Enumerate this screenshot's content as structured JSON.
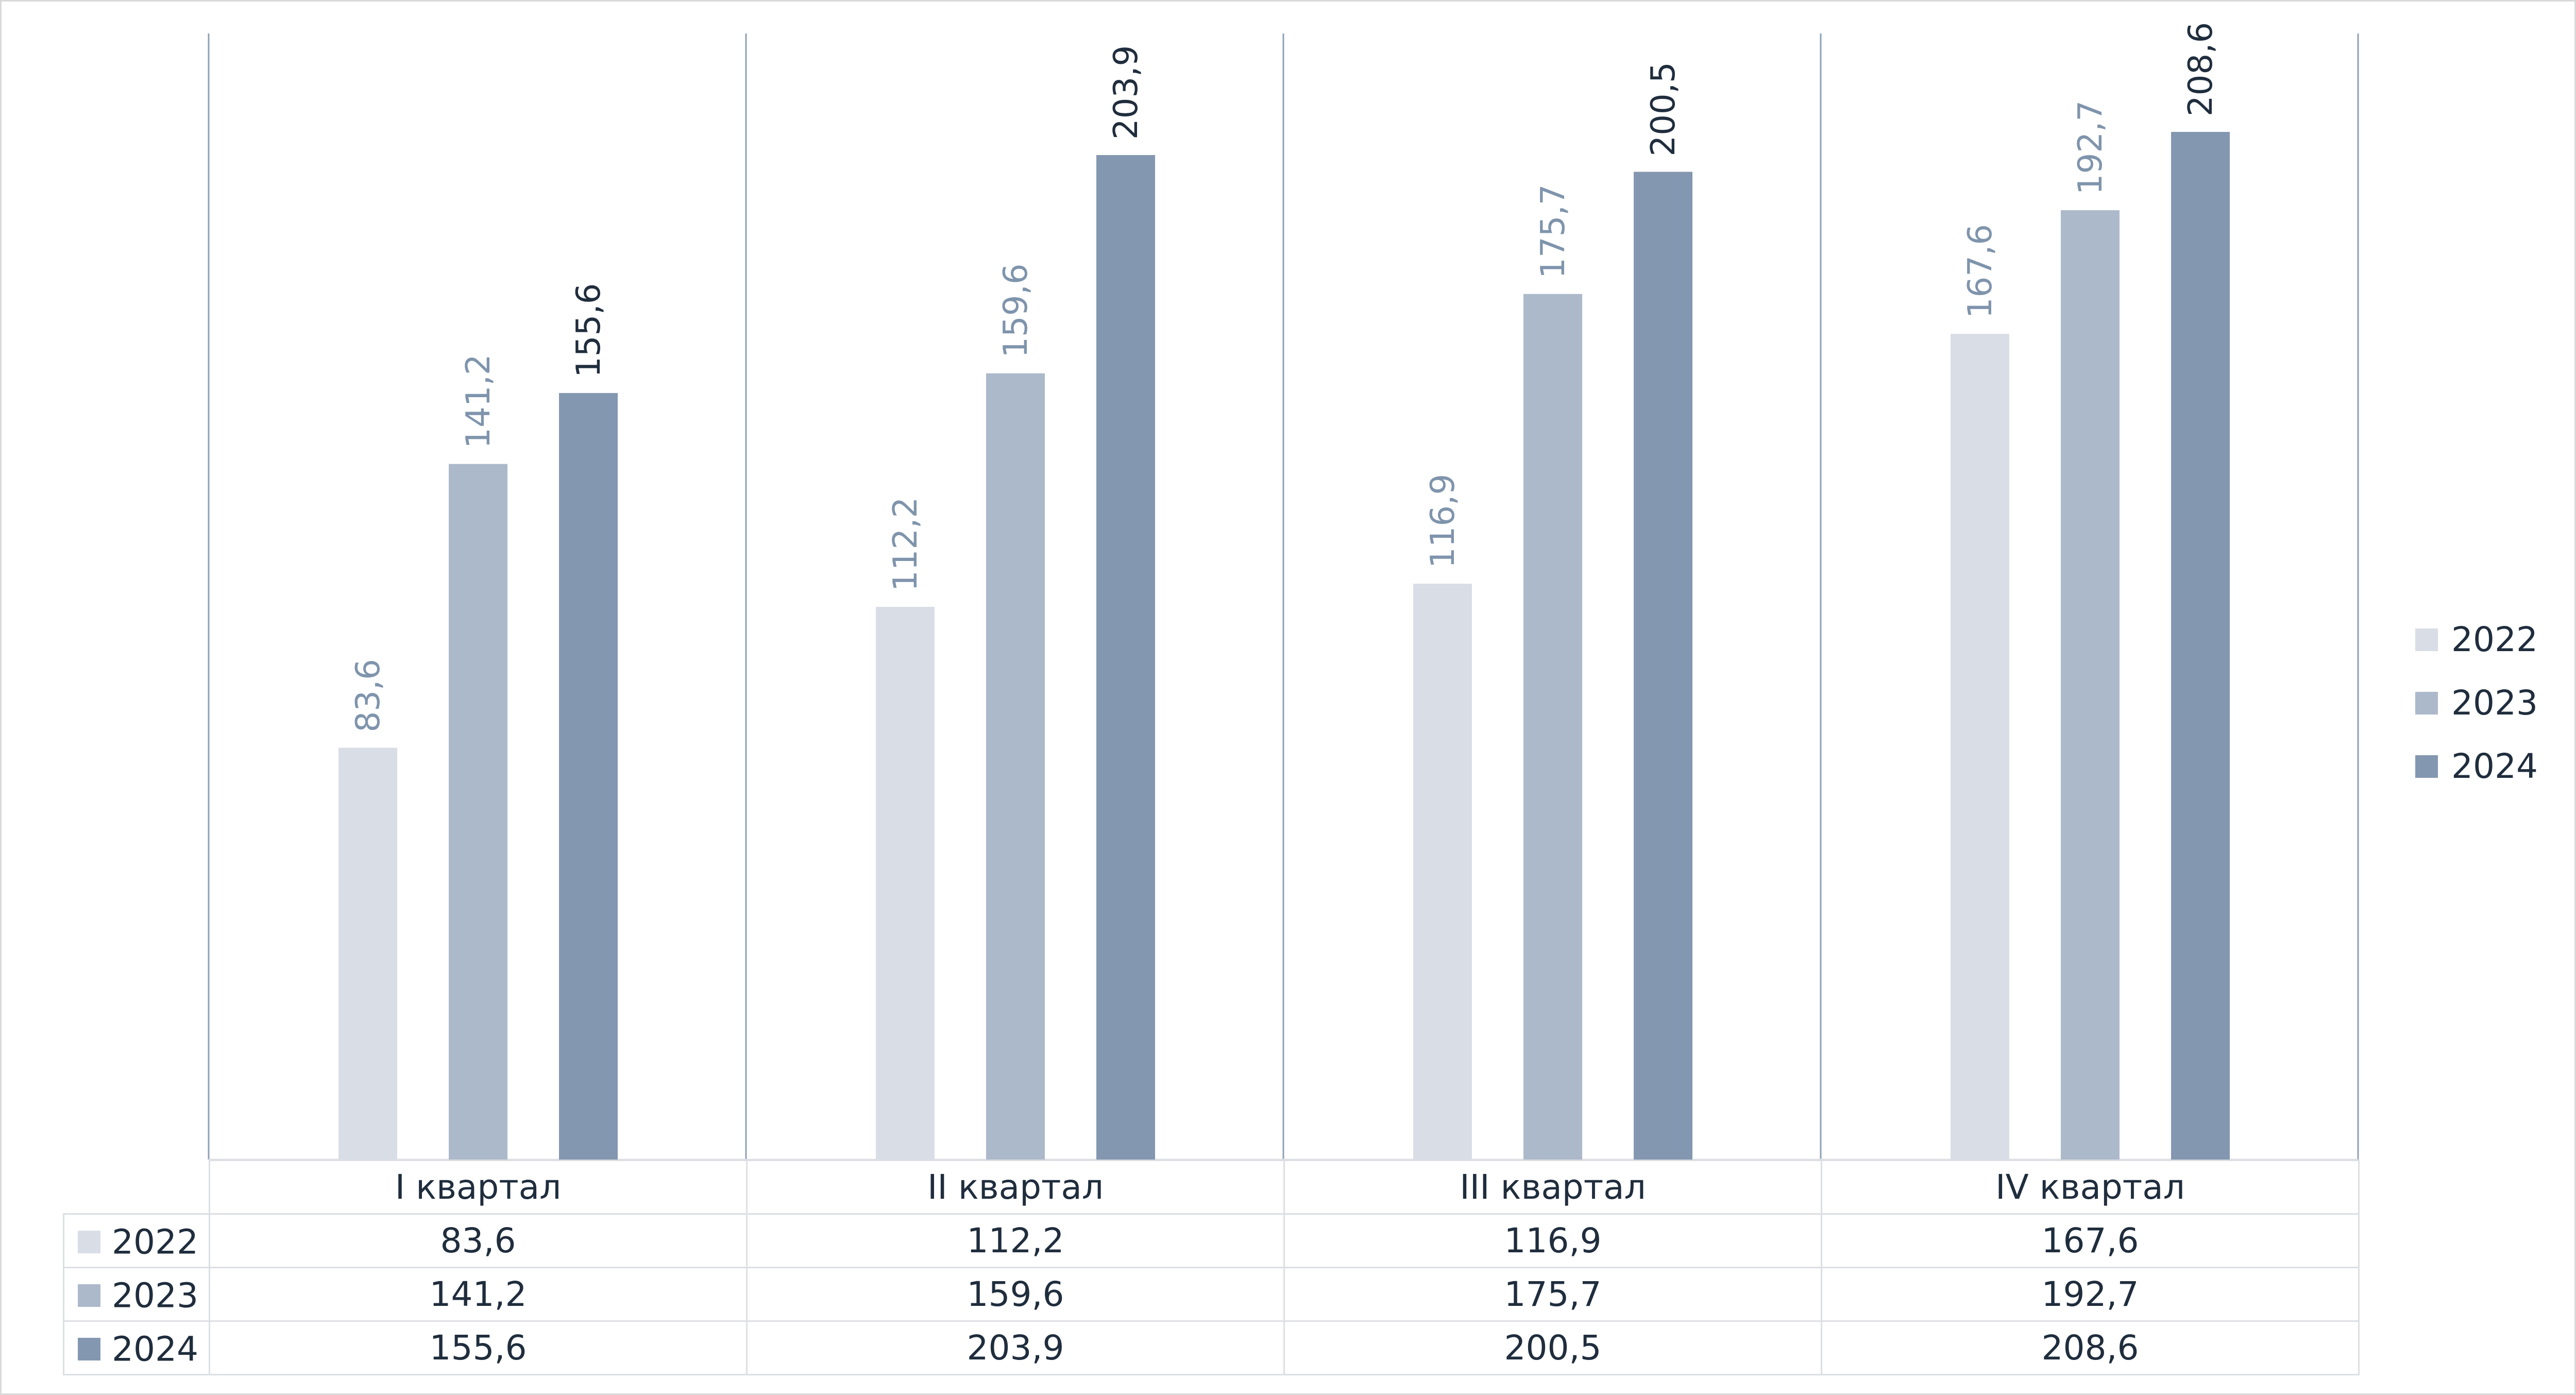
{
  "chart_data": {
    "type": "bar",
    "title": "",
    "xlabel": "",
    "ylabel": "",
    "ylim": [
      0,
      220
    ],
    "categories": [
      "I квартал",
      "II квартал",
      "III квартал",
      "IV квартал"
    ],
    "series": [
      {
        "name": "2022",
        "values": [
          83.6,
          112.2,
          116.9,
          167.6
        ],
        "labels": [
          "83,6",
          "112,2",
          "116,9",
          "167,6"
        ],
        "color": "#d9dde6",
        "label_color": "#7f94ac"
      },
      {
        "name": "2023",
        "values": [
          141.2,
          159.6,
          175.7,
          192.7
        ],
        "labels": [
          "141,2",
          "159,6",
          "175,7",
          "192,7"
        ],
        "color": "#acb9ca",
        "label_color": "#7f94ac"
      },
      {
        "name": "2024",
        "values": [
          155.6,
          203.9,
          200.5,
          208.6
        ],
        "labels": [
          "155,6",
          "203,9",
          "200,5",
          "208,6"
        ],
        "color": "#8497b0",
        "label_color": "#1f2d3d"
      }
    ],
    "legend": "right",
    "grid": false,
    "data_table": {
      "rows": [
        {
          "name": "2022",
          "values": [
            "83,6",
            "112,2",
            "116,9",
            "167,6"
          ]
        },
        {
          "name": "2023",
          "values": [
            "141,2",
            "159,6",
            "175,7",
            "192,7"
          ]
        },
        {
          "name": "2024",
          "values": [
            "155,6",
            "203,9",
            "200,5",
            "208,6"
          ]
        }
      ]
    }
  }
}
